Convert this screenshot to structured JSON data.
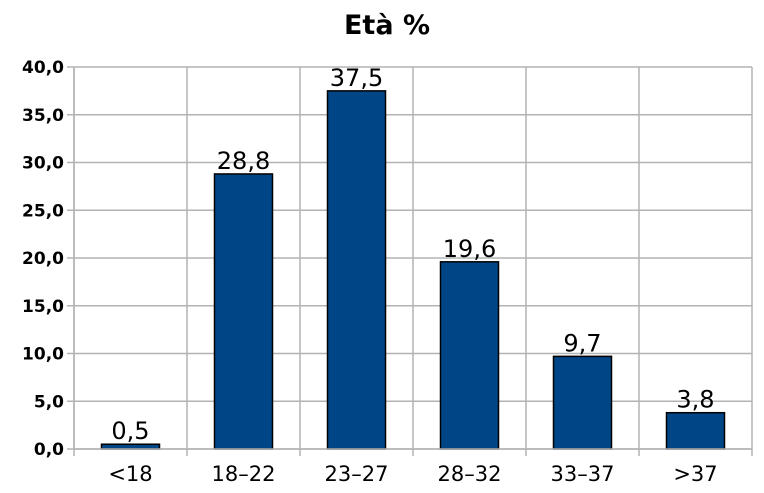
{
  "chart_data": {
    "type": "bar",
    "title": "Età %",
    "categories": [
      "<18",
      "18–22",
      "23–27",
      "28–32",
      "33–37",
      ">37"
    ],
    "values": [
      0.5,
      28.8,
      37.5,
      19.6,
      9.7,
      3.8
    ],
    "data_labels": [
      "0,5",
      "28,8",
      "37,5",
      "19,6",
      "9,7",
      "3,8"
    ],
    "yticks": [
      "0,0",
      "5,0",
      "10,0",
      "15,0",
      "20,0",
      "25,0",
      "30,0",
      "35,0",
      "40,0"
    ],
    "ylim": [
      0,
      40
    ],
    "xlabel": "",
    "ylabel": "",
    "grid": true,
    "legend": "none",
    "bar_color": "#004586",
    "grid_color": "#b3b3b3"
  }
}
